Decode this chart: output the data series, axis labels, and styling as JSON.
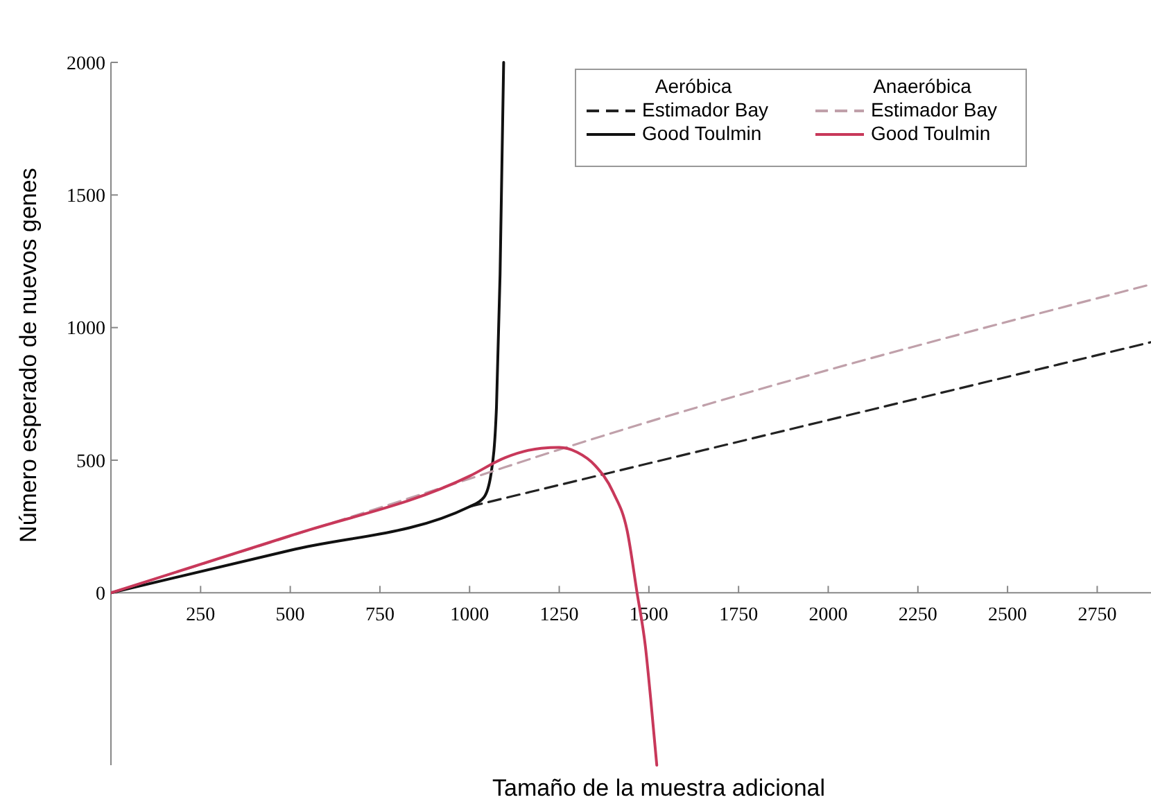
{
  "chart_data": {
    "type": "line",
    "xlabel": "Tamaño de la muestra adicional",
    "ylabel": "Número esperado de nuevos genes",
    "xlim": [
      0,
      2900
    ],
    "ylim": [
      -650,
      2000
    ],
    "xticks": [
      250,
      500,
      750,
      1000,
      1250,
      1500,
      1750,
      2000,
      2250,
      2500,
      2750
    ],
    "yticks": [
      0,
      500,
      1000,
      1500,
      2000
    ],
    "grid": false,
    "legend": "top right",
    "marker": "none",
    "annotations": [
      "Aeróbica",
      "Anaeróbica"
    ],
    "series": [
      {
        "name": "Estimador Bay",
        "color": "#222222",
        "line_style": "dashed",
        "x": [
          1000,
          2900
        ],
        "values": [
          325,
          945
        ]
      },
      {
        "name": "Good Toulmin",
        "color": "#111111",
        "line_style": "solid",
        "x": [
          0,
          500,
          1000,
          1040,
          1060,
          1075,
          1085,
          1095
        ],
        "values": [
          0,
          160,
          325,
          360,
          450,
          700,
          1200,
          2000
        ]
      },
      {
        "name": "Estimador Bay",
        "color": "#c0a0aa",
        "line_style": "dashed",
        "x": [
          0,
          1000,
          1250,
          2900
        ],
        "values": [
          0,
          430,
          540,
          1163
        ]
      },
      {
        "name": "Good Toulmin",
        "color": "#c8385a",
        "line_style": "solid",
        "x": [
          0,
          500,
          1000,
          1100,
          1200,
          1250,
          1300,
          1350,
          1400,
          1440,
          1467,
          1490,
          1505,
          1522
        ],
        "values": [
          0,
          215,
          440,
          510,
          545,
          548,
          530,
          480,
          380,
          230,
          0,
          -200,
          -400,
          -650
        ]
      }
    ]
  }
}
